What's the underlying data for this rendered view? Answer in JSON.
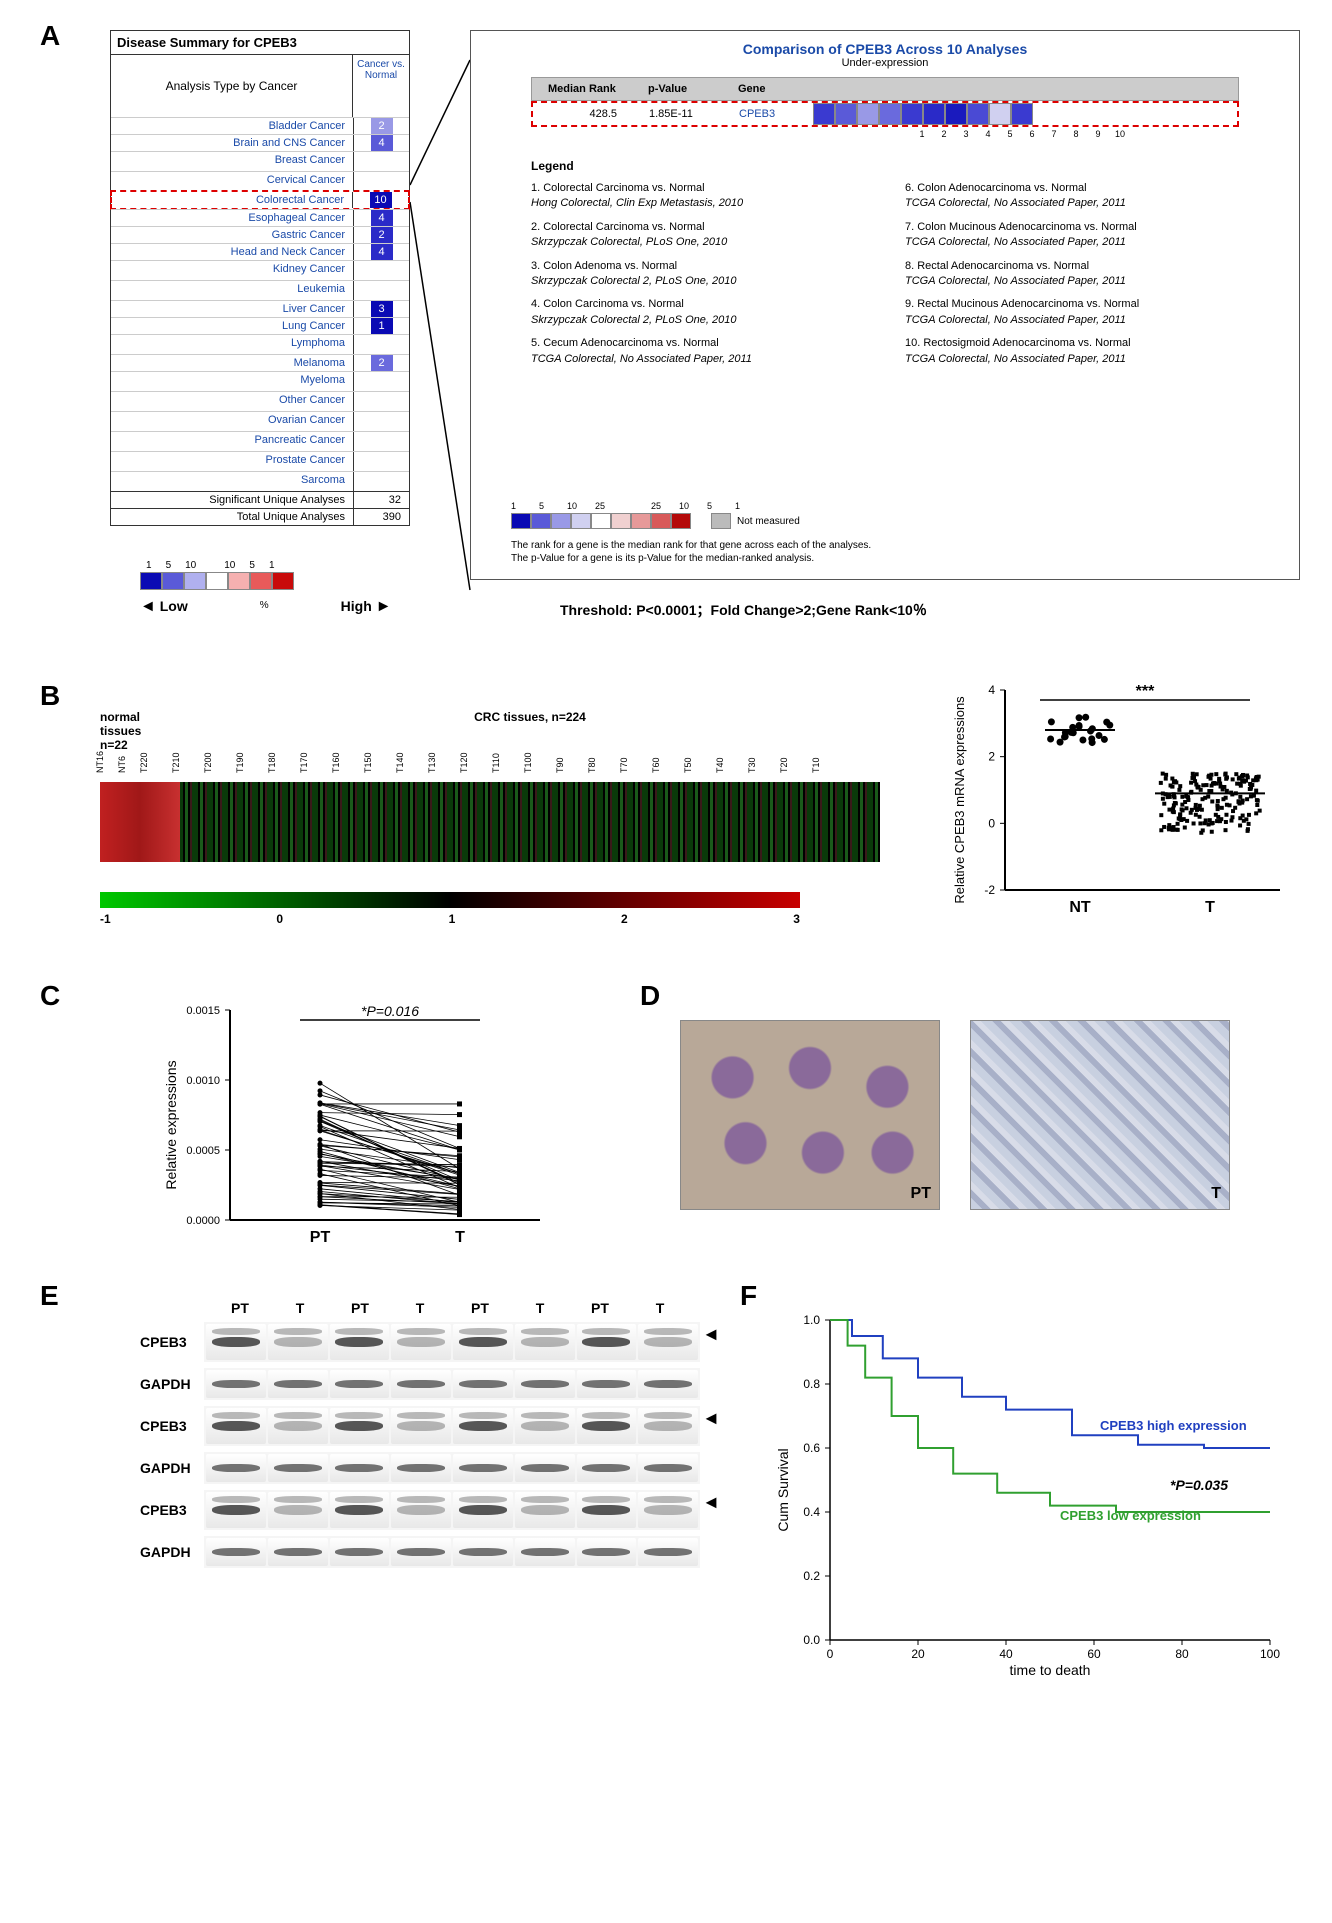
{
  "panel_labels": {
    "A": "A",
    "B": "B",
    "C": "C",
    "D": "D",
    "E": "E",
    "F": "F"
  },
  "panelA": {
    "title": "Disease Summary for CPEB3",
    "header_col1": "Analysis Type by Cancer",
    "header_col2": "Cancer vs. Normal",
    "rows": [
      {
        "name": "Bladder Cancer",
        "val": "2",
        "color": "#9999e6"
      },
      {
        "name": "Brain and CNS Cancer",
        "val": "4",
        "color": "#5a5ad8"
      },
      {
        "name": "Breast Cancer",
        "val": "",
        "color": ""
      },
      {
        "name": "Cervical Cancer",
        "val": "",
        "color": ""
      },
      {
        "name": "Colorectal Cancer",
        "val": "10",
        "color": "#0a0ab4",
        "highlight": true
      },
      {
        "name": "Esophageal Cancer",
        "val": "4",
        "color": "#2a2ac8"
      },
      {
        "name": "Gastric Cancer",
        "val": "2",
        "color": "#2a2ac8"
      },
      {
        "name": "Head and Neck Cancer",
        "val": "4",
        "color": "#2a2ac8"
      },
      {
        "name": "Kidney Cancer",
        "val": "",
        "color": ""
      },
      {
        "name": "Leukemia",
        "val": "",
        "color": ""
      },
      {
        "name": "Liver Cancer",
        "val": "3",
        "color": "#0a0ab4"
      },
      {
        "name": "Lung Cancer",
        "val": "1",
        "color": "#0a0ab4"
      },
      {
        "name": "Lymphoma",
        "val": "",
        "color": ""
      },
      {
        "name": "Melanoma",
        "val": "2",
        "color": "#6a6add"
      },
      {
        "name": "Myeloma",
        "val": "",
        "color": ""
      },
      {
        "name": "Other Cancer",
        "val": "",
        "color": ""
      },
      {
        "name": "Ovarian Cancer",
        "val": "",
        "color": ""
      },
      {
        "name": "Pancreatic Cancer",
        "val": "",
        "color": ""
      },
      {
        "name": "Prostate Cancer",
        "val": "",
        "color": ""
      },
      {
        "name": "Sarcoma",
        "val": "",
        "color": ""
      }
    ],
    "sig_label": "Significant Unique Analyses",
    "sig_val": "32",
    "tot_label": "Total Unique Analyses",
    "tot_val": "390",
    "legend_nums": [
      "1",
      "5",
      "10",
      "",
      "10",
      "5",
      "1"
    ],
    "legend_colors": [
      "#0a0ab4",
      "#5a5ad8",
      "#b0b0ef",
      "#ffffff",
      "#f5b0b0",
      "#e85a5a",
      "#c80a0a"
    ],
    "low": "Low",
    "high": "High",
    "pct": "%",
    "comparison": {
      "title": "Comparison of CPEB3 Across 10 Analyses",
      "subtitle": "Under-expression",
      "cols": [
        "Median Rank",
        "p-Value",
        "Gene"
      ],
      "vals": [
        "428.5",
        "1.85E-11",
        "CPEB3"
      ],
      "rank_colors": [
        "#3a3ad0",
        "#5a5ad8",
        "#9999e6",
        "#6a6add",
        "#3a3ad0",
        "#2a2ac8",
        "#1a1abe",
        "#4a4ad4",
        "#d0d0f0",
        "#3a3ad0"
      ],
      "legend_title": "Legend",
      "items_left": [
        {
          "n": "1.",
          "t": "Colorectal Carcinoma vs. Normal",
          "s": "Hong Colorectal, Clin Exp Metastasis, 2010"
        },
        {
          "n": "2.",
          "t": "Colorectal Carcinoma vs. Normal",
          "s": "Skrzypczak Colorectal, PLoS One, 2010"
        },
        {
          "n": "3.",
          "t": "Colon Adenoma vs. Normal",
          "s": "Skrzypczak Colorectal 2, PLoS One, 2010"
        },
        {
          "n": "4.",
          "t": "Colon Carcinoma vs. Normal",
          "s": "Skrzypczak Colorectal 2, PLoS One, 2010"
        },
        {
          "n": "5.",
          "t": "Cecum Adenocarcinoma vs. Normal",
          "s": "TCGA Colorectal, No Associated Paper, 2011"
        }
      ],
      "items_right": [
        {
          "n": "6.",
          "t": "Colon Adenocarcinoma vs. Normal",
          "s": "TCGA Colorectal, No Associated Paper, 2011"
        },
        {
          "n": "7.",
          "t": "Colon Mucinous Adenocarcinoma vs. Normal",
          "s": "TCGA Colorectal, No Associated Paper, 2011"
        },
        {
          "n": "8.",
          "t": "Rectal Adenocarcinoma vs. Normal",
          "s": "TCGA Colorectal, No Associated Paper, 2011"
        },
        {
          "n": "9.",
          "t": "Rectal Mucinous Adenocarcinoma vs. Normal",
          "s": "TCGA Colorectal, No Associated Paper, 2011"
        },
        {
          "n": "10.",
          "t": "Rectosigmoid Adenocarcinoma vs. Normal",
          "s": "TCGA Colorectal, No Associated Paper, 2011"
        }
      ],
      "bottom_nums": [
        "1",
        "5",
        "10",
        "25",
        "",
        "25",
        "10",
        "5",
        "1"
      ],
      "not_measured": "Not measured",
      "note1": "The rank for a gene is the median rank for that gene across each of the analyses.",
      "note2": "The p-Value for a gene is its p-Value for the median-ranked analysis."
    },
    "threshold": "Threshold: P<0.0001；Fold Change>2;Gene Rank<10％"
  },
  "panelB": {
    "nt_label": "normal tissues",
    "nt_n": "n=22",
    "crc_label": "CRC tissues, n=224",
    "sample_ticks": [
      "NT16",
      "NT6",
      "T220",
      "T210",
      "T200",
      "T190",
      "T180",
      "T170",
      "T160",
      "T150",
      "T140",
      "T130",
      "T120",
      "T110",
      "T100",
      "T90",
      "T80",
      "T70",
      "T60",
      "T50",
      "T40",
      "T30",
      "T20",
      "T10"
    ],
    "colorbar_ticks": [
      "-1",
      "0",
      "1",
      "2",
      "3"
    ],
    "scatter": {
      "ylabel": "Relative CPEB3 mRNA expressions",
      "yticks": [
        "-2",
        "0",
        "2",
        "4"
      ],
      "sig": "***",
      "groups": [
        "NT",
        "T"
      ],
      "nt_mean": 2.8,
      "t_mean": 0.9,
      "ylim": [
        -2,
        4
      ]
    }
  },
  "panelC": {
    "ylabel": "Relative expressions",
    "yticks": [
      "0.0000",
      "0.0005",
      "0.0010",
      "0.0015"
    ],
    "sig": "*P=0.016",
    "groups": [
      "PT",
      "T"
    ],
    "ylim": [
      0,
      0.0015
    ]
  },
  "panelD": {
    "left": "PT",
    "right": "T"
  },
  "panelE": {
    "header": [
      "PT",
      "T",
      "PT",
      "T",
      "PT",
      "T",
      "PT",
      "T"
    ],
    "rows": [
      "CPEB3",
      "GAPDH",
      "CPEB3",
      "GAPDH",
      "CPEB3",
      "GAPDH"
    ]
  },
  "panelF": {
    "type": "survival",
    "ylabel": "Cum Survival",
    "xlabel": "time to death",
    "yticks": [
      "0.0",
      "0.2",
      "0.4",
      "0.6",
      "0.8",
      "1.0"
    ],
    "xticks": [
      "0",
      "20",
      "40",
      "60",
      "80",
      "100"
    ],
    "xlim": [
      0,
      100
    ],
    "ylim": [
      0,
      1
    ],
    "high_label": "CPEB3 high expression",
    "high_color": "#2040c0",
    "low_label": "CPEB3 low expression",
    "low_color": "#30a030",
    "pval": "*P=0.035",
    "high_curve": [
      [
        0,
        1.0
      ],
      [
        5,
        0.95
      ],
      [
        12,
        0.88
      ],
      [
        20,
        0.82
      ],
      [
        30,
        0.76
      ],
      [
        40,
        0.72
      ],
      [
        55,
        0.64
      ],
      [
        70,
        0.61
      ],
      [
        85,
        0.6
      ],
      [
        100,
        0.6
      ]
    ],
    "low_curve": [
      [
        0,
        1.0
      ],
      [
        4,
        0.92
      ],
      [
        8,
        0.82
      ],
      [
        14,
        0.7
      ],
      [
        20,
        0.6
      ],
      [
        28,
        0.52
      ],
      [
        38,
        0.46
      ],
      [
        50,
        0.42
      ],
      [
        65,
        0.4
      ],
      [
        85,
        0.4
      ],
      [
        100,
        0.4
      ]
    ]
  }
}
